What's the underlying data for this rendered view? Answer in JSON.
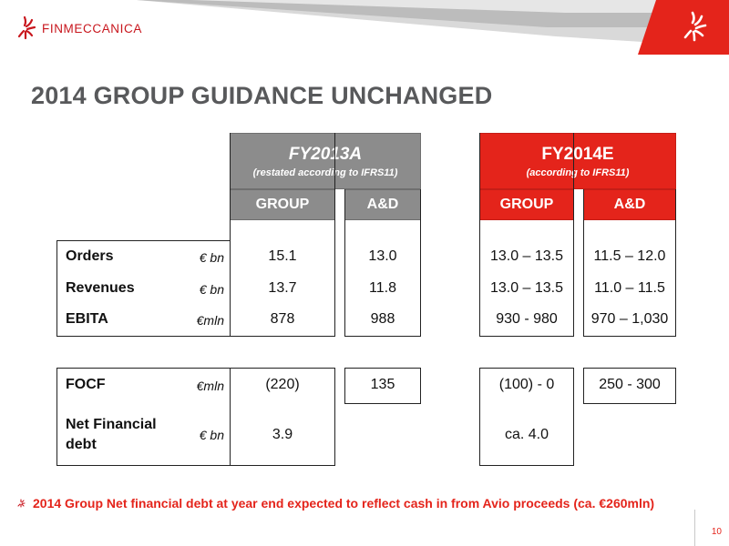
{
  "brand": {
    "name": "FINMECCANICA",
    "accent": "#e4241b",
    "grey": "#8c8c8c",
    "logo_icon": "finmeccanica-star-logo"
  },
  "title": "2014 GROUP GUIDANCE UNCHANGED",
  "fy2013": {
    "title": "FY2013A",
    "subtitle": "(restated according to IFRS11)",
    "col_group": "GROUP",
    "col_ad": "A&D"
  },
  "fy2014": {
    "title": "FY2014E",
    "subtitle": "(according to IFRS11)",
    "col_group": "GROUP",
    "col_ad": "A&D"
  },
  "table1": {
    "rows": [
      {
        "label": "Orders",
        "unit": "€ bn",
        "fy13_group": "15.1",
        "fy13_ad": "13.0",
        "fy14_group": "13.0 – 13.5",
        "fy14_ad": "11.5 – 12.0"
      },
      {
        "label": "Revenues",
        "unit": "€ bn",
        "fy13_group": "13.7",
        "fy13_ad": "11.8",
        "fy14_group": "13.0 – 13.5",
        "fy14_ad": "11.0 – 11.5"
      },
      {
        "label": "EBITA",
        "unit": "€mln",
        "fy13_group": "878",
        "fy13_ad": "988",
        "fy14_group": "930 - 980",
        "fy14_ad": "970 – 1,030"
      }
    ]
  },
  "table2": {
    "rows": [
      {
        "label": "FOCF",
        "unit": "€mln",
        "fy13_group": "(220)",
        "fy13_ad": "135",
        "fy14_group": "(100) - 0",
        "fy14_ad": "250 - 300"
      },
      {
        "label_line1": "Net Financial",
        "label_line2": "debt",
        "unit": "€ bn",
        "fy13_group": "3.9",
        "fy14_group": "ca. 4.0"
      }
    ]
  },
  "footnote": "2014 Group Net financial debt at year end expected to reflect cash in from Avio proceeds (ca. €260mln)",
  "page_number": "10"
}
